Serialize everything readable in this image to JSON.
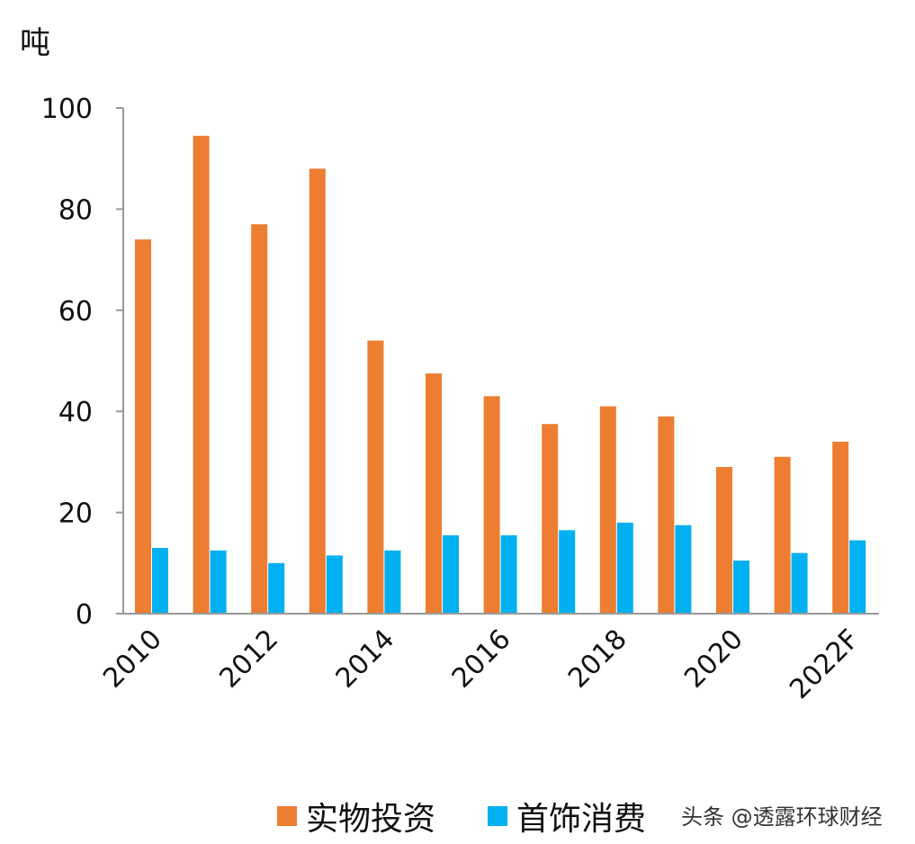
{
  "chart_data": {
    "type": "bar",
    "ylabel": "吨",
    "ylim": [
      0,
      100
    ],
    "yticks": [
      0,
      20,
      40,
      60,
      80,
      100
    ],
    "categories": [
      "2010",
      "2011",
      "2012",
      "2013",
      "2014",
      "2015",
      "2016",
      "2017",
      "2018",
      "2019",
      "2020",
      "2021",
      "2022F"
    ],
    "x_tick_labels": [
      "2010",
      "",
      "2012",
      "",
      "2014",
      "",
      "2016",
      "",
      "2018",
      "",
      "2020",
      "",
      "2022F"
    ],
    "series": [
      {
        "name": "实物投资",
        "color": "#ED7D31",
        "values": [
          74,
          94.5,
          77,
          88,
          54,
          47.5,
          43,
          37.5,
          41,
          39,
          29,
          31,
          34
        ]
      },
      {
        "name": "首饰消费",
        "color": "#00B0F0",
        "values": [
          13,
          12.5,
          10,
          11.5,
          12.5,
          15.5,
          15.5,
          16.5,
          18,
          17.5,
          10.5,
          12,
          14.5
        ]
      }
    ],
    "legend_position": "bottom",
    "grid": false
  },
  "watermark": "头条 @透露环球财经"
}
